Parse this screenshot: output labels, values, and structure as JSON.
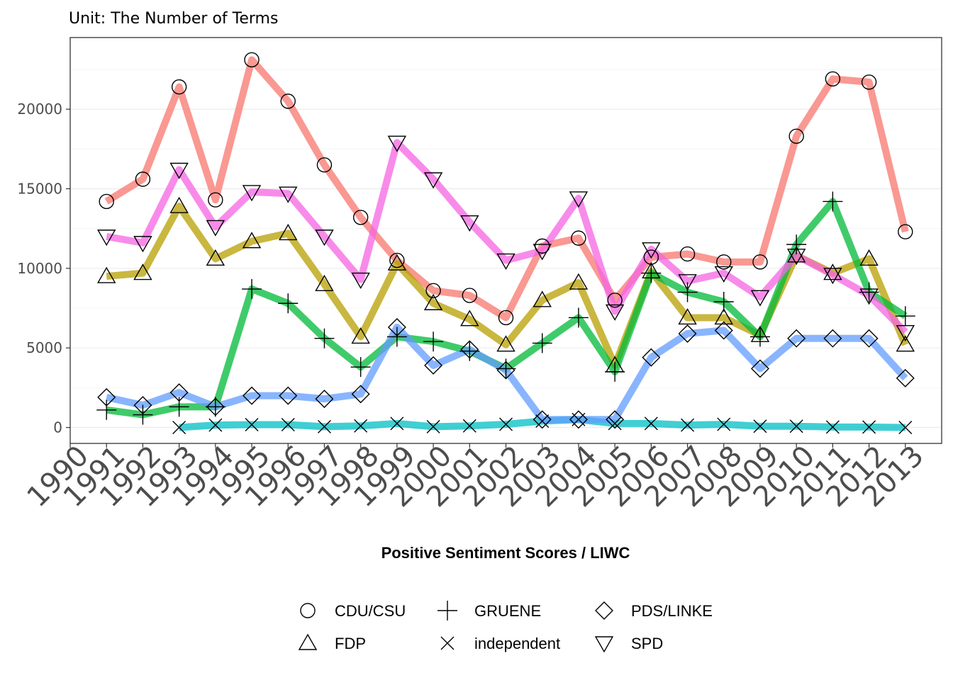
{
  "chart_data": {
    "type": "line",
    "subtitle": "Unit: The Number of Terms",
    "xlabel": "Positive Sentiment Scores / LIWC",
    "ylabel": "",
    "x_ticks": [
      "1990",
      "1991",
      "1992",
      "1993",
      "1994",
      "1995",
      "1996",
      "1997",
      "1998",
      "1999",
      "2000",
      "2001",
      "2002",
      "2003",
      "2004",
      "2005",
      "2006",
      "2007",
      "2008",
      "2009",
      "2010",
      "2011",
      "2012",
      "2013"
    ],
    "xlim": [
      1990,
      2014
    ],
    "y_ticks": [
      0,
      5000,
      10000,
      15000,
      20000
    ],
    "ylim": [
      -1000,
      24500
    ],
    "grid": true,
    "legend_position": "bottom",
    "series": [
      {
        "name": "CDU/CSU",
        "color": "#F8766D",
        "marker": "circle",
        "x": [
          1991,
          1992,
          1993,
          1994,
          1995,
          1996,
          1997,
          1998,
          1999,
          2000,
          2001,
          2002,
          2003,
          2004,
          2005,
          2006,
          2007,
          2008,
          2009,
          2010,
          2011,
          2012,
          2013
        ],
        "y": [
          14200,
          15600,
          21400,
          14300,
          23100,
          20500,
          16500,
          13200,
          10500,
          8600,
          8300,
          6900,
          11400,
          11900,
          8000,
          10700,
          10900,
          10400,
          10400,
          18300,
          21900,
          21700,
          12300
        ]
      },
      {
        "name": "FDP",
        "color": "#B79F00",
        "marker": "triangle",
        "x": [
          1991,
          1992,
          1993,
          1994,
          1995,
          1996,
          1997,
          1998,
          1999,
          2000,
          2001,
          2002,
          2003,
          2004,
          2005,
          2006,
          2007,
          2008,
          2009,
          2010,
          2011,
          2012,
          2013
        ],
        "y": [
          9500,
          9700,
          13900,
          10600,
          11700,
          12200,
          9000,
          5700,
          10300,
          7800,
          6800,
          5200,
          8000,
          9100,
          3900,
          9800,
          6900,
          6900,
          5800,
          10800,
          9700,
          10600,
          5200
        ]
      },
      {
        "name": "GRUENE",
        "color": "#00BA38",
        "marker": "plus",
        "x": [
          1991,
          1992,
          1993,
          1994,
          1995,
          1996,
          1997,
          1998,
          1999,
          2000,
          2001,
          2002,
          2003,
          2004,
          2005,
          2006,
          2007,
          2008,
          2009,
          2010,
          2011,
          2012,
          2013
        ],
        "y": [
          1100,
          800,
          1300,
          1300,
          8700,
          7800,
          5600,
          3800,
          5700,
          5400,
          4800,
          3700,
          5300,
          6900,
          3500,
          9700,
          8500,
          7900,
          5700,
          11500,
          14200,
          8500,
          7000
        ]
      },
      {
        "name": "independent",
        "color": "#00BFC4",
        "marker": "x",
        "x": [
          1993,
          1994,
          1995,
          1996,
          1997,
          1998,
          1999,
          2000,
          2001,
          2002,
          2003,
          2004,
          2005,
          2006,
          2007,
          2008,
          2009,
          2010,
          2011,
          2012,
          2013
        ],
        "y": [
          0,
          150,
          180,
          180,
          50,
          100,
          250,
          50,
          100,
          200,
          400,
          500,
          250,
          250,
          150,
          200,
          80,
          80,
          30,
          30,
          0
        ]
      },
      {
        "name": "PDS/LINKE",
        "color": "#619CFF",
        "marker": "diamond",
        "x": [
          1991,
          1992,
          1993,
          1994,
          1995,
          1996,
          1997,
          1998,
          1999,
          2000,
          2001,
          2002,
          2003,
          2004,
          2005,
          2006,
          2007,
          2008,
          2009,
          2010,
          2011,
          2012,
          2013
        ],
        "y": [
          1900,
          1400,
          2200,
          1300,
          2000,
          2000,
          1800,
          2100,
          6300,
          3900,
          4900,
          3600,
          500,
          500,
          500,
          4400,
          5900,
          6100,
          3700,
          5600,
          5600,
          5600,
          3100
        ]
      },
      {
        "name": "SPD",
        "color": "#F564E3",
        "marker": "triangle-down",
        "x": [
          1991,
          1992,
          1993,
          1994,
          1995,
          1996,
          1997,
          1998,
          1999,
          2000,
          2001,
          2002,
          2003,
          2004,
          2005,
          2006,
          2007,
          2008,
          2009,
          2010,
          2011,
          2012,
          2013
        ],
        "y": [
          12000,
          11600,
          16200,
          12600,
          14800,
          14700,
          12000,
          9300,
          17900,
          15600,
          12900,
          10500,
          11100,
          14400,
          7300,
          11200,
          9200,
          9700,
          8200,
          10800,
          9600,
          8300,
          6000
        ]
      }
    ]
  }
}
